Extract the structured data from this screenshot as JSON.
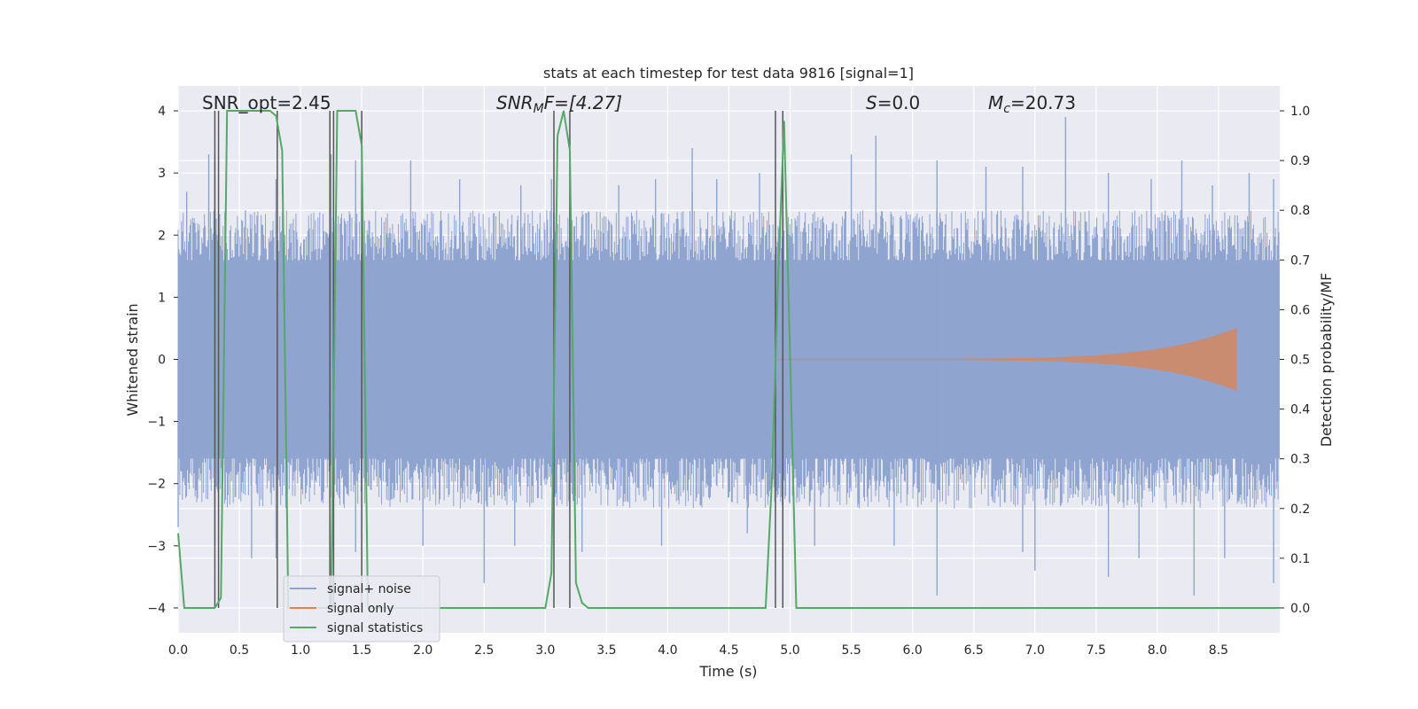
{
  "chart_data": {
    "type": "line",
    "title": "stats at each timestep for test data 9816 [signal=1]",
    "xlabel": "Time (s)",
    "ylabel": "Whitened strain",
    "ylabel_right": "Detection probability/MF",
    "xlim": [
      0.0,
      9.0
    ],
    "ylim": [
      -4.4,
      4.4
    ],
    "ylim_right": [
      -0.05,
      1.05
    ],
    "xticks": [
      "0.0",
      "0.5",
      "1.0",
      "1.5",
      "2.0",
      "2.5",
      "3.0",
      "3.5",
      "4.0",
      "4.5",
      "5.0",
      "5.5",
      "6.0",
      "6.5",
      "7.0",
      "7.5",
      "8.0",
      "8.5"
    ],
    "xtick_values": [
      0.0,
      0.5,
      1.0,
      1.5,
      2.0,
      2.5,
      3.0,
      3.5,
      4.0,
      4.5,
      5.0,
      5.5,
      6.0,
      6.5,
      7.0,
      7.5,
      8.0,
      8.5
    ],
    "yticks": [
      "4",
      "3",
      "2",
      "1",
      "0",
      "−1",
      "−2",
      "−3",
      "−4"
    ],
    "ytick_values": [
      4,
      3,
      2,
      1,
      0,
      -1,
      -2,
      -3,
      -4
    ],
    "yticks_right": [
      "1.0",
      "0.9",
      "0.8",
      "0.7",
      "0.6",
      "0.5",
      "0.4",
      "0.3",
      "0.2",
      "0.1",
      "0.0"
    ],
    "ytick_values_right": [
      1.0,
      0.9,
      0.8,
      0.7,
      0.6,
      0.5,
      0.4,
      0.3,
      0.2,
      0.1,
      0.0
    ],
    "grid": true,
    "legend_position": "lower-left",
    "annotations": {
      "snr_opt": "SNR_opt=2.45",
      "snr_mf_sym": "SNR",
      "snr_mf_sub": "M",
      "snr_mf_rest": "F=[4.27]",
      "s_sym": "S",
      "s_rest": "=0.0",
      "mc_sym": "M",
      "mc_sub": "c",
      "mc_rest": "=20.73"
    },
    "series": [
      {
        "name": "signal+ noise",
        "color": "#8fa4cf",
        "axis": "left",
        "envelope_upper": 1.6,
        "envelope_lower": -1.6,
        "spike_peaks": [
          [
            0.07,
            2.7
          ],
          [
            0.25,
            3.3
          ],
          [
            0.3,
            3.3
          ],
          [
            0.55,
            2.4
          ],
          [
            0.8,
            2.9
          ],
          [
            1.25,
            3.3
          ],
          [
            1.45,
            3.2
          ],
          [
            1.9,
            3.2
          ],
          [
            2.3,
            2.9
          ],
          [
            2.8,
            2.8
          ],
          [
            3.05,
            2.9
          ],
          [
            3.6,
            2.8
          ],
          [
            3.9,
            2.9
          ],
          [
            4.2,
            2.7
          ],
          [
            4.2,
            3.4
          ],
          [
            4.4,
            2.9
          ],
          [
            4.75,
            3.0
          ],
          [
            5.5,
            3.3
          ],
          [
            5.7,
            3.6
          ],
          [
            6.2,
            3.2
          ],
          [
            6.6,
            3.1
          ],
          [
            6.9,
            3.1
          ],
          [
            7.25,
            3.9
          ],
          [
            7.6,
            3.0
          ],
          [
            7.95,
            2.9
          ],
          [
            8.2,
            3.2
          ],
          [
            8.45,
            2.8
          ],
          [
            8.75,
            3.0
          ],
          [
            8.95,
            2.9
          ]
        ],
        "spike_troughs": [
          [
            0.0,
            -2.7
          ],
          [
            0.3,
            -3.0
          ],
          [
            0.6,
            -3.2
          ],
          [
            0.8,
            -3.2
          ],
          [
            1.45,
            -3.1
          ],
          [
            2.0,
            -3.0
          ],
          [
            2.5,
            -3.6
          ],
          [
            2.75,
            -3.0
          ],
          [
            3.3,
            -3.1
          ],
          [
            3.95,
            -3.0
          ],
          [
            4.65,
            -2.8
          ],
          [
            5.2,
            -3.0
          ],
          [
            5.85,
            -3.0
          ],
          [
            6.2,
            -3.8
          ],
          [
            6.9,
            -3.1
          ],
          [
            7.0,
            -3.4
          ],
          [
            7.6,
            -3.5
          ],
          [
            7.85,
            -3.2
          ],
          [
            8.3,
            -3.8
          ],
          [
            8.55,
            -3.2
          ],
          [
            8.95,
            -3.6
          ]
        ]
      },
      {
        "name": "signal only",
        "color": "#dd8452",
        "axis": "left",
        "chirp_start": 4.9,
        "chirp_end": 8.65,
        "chirp_peak_amplitude": 0.5
      },
      {
        "name": "signal statistics",
        "color": "#55a868",
        "axis": "right",
        "x": [
          0.0,
          0.05,
          0.1,
          0.15,
          0.2,
          0.25,
          0.3,
          0.35,
          0.4,
          0.45,
          0.5,
          0.55,
          0.6,
          0.65,
          0.7,
          0.75,
          0.8,
          0.85,
          0.9,
          0.95,
          1.0,
          1.05,
          1.1,
          1.15,
          1.2,
          1.25,
          1.3,
          1.35,
          1.4,
          1.45,
          1.5,
          1.55,
          1.6,
          1.7,
          1.8,
          1.9,
          2.0,
          2.1,
          2.2,
          2.3,
          2.4,
          2.5,
          2.6,
          2.7,
          2.8,
          2.9,
          3.0,
          3.05,
          3.1,
          3.15,
          3.2,
          3.25,
          3.3,
          3.35,
          3.4,
          3.5,
          3.6,
          3.7,
          3.8,
          3.9,
          4.0,
          4.1,
          4.2,
          4.3,
          4.4,
          4.5,
          4.6,
          4.7,
          4.8,
          4.85,
          4.9,
          4.95,
          5.0,
          5.05,
          5.1,
          5.2,
          5.5,
          6.0,
          6.5,
          7.0,
          7.5,
          8.0,
          8.5,
          9.0
        ],
        "values": [
          0.15,
          0.0,
          0.0,
          0.0,
          0.0,
          0.0,
          0.0,
          0.02,
          1.0,
          1.0,
          1.0,
          1.0,
          1.0,
          1.0,
          1.0,
          1.0,
          0.99,
          0.92,
          0.0,
          0.0,
          0.0,
          0.0,
          0.0,
          0.0,
          0.0,
          0.0,
          1.0,
          1.0,
          1.0,
          1.0,
          0.93,
          0.0,
          0.0,
          0.0,
          0.0,
          0.0,
          0.0,
          0.0,
          0.0,
          0.0,
          0.0,
          0.0,
          0.0,
          0.0,
          0.0,
          0.0,
          0.0,
          0.07,
          0.95,
          1.0,
          0.92,
          0.05,
          0.01,
          0.0,
          0.0,
          0.0,
          0.0,
          0.0,
          0.0,
          0.0,
          0.0,
          0.0,
          0.0,
          0.0,
          0.0,
          0.0,
          0.0,
          0.0,
          0.0,
          0.25,
          0.65,
          0.98,
          0.5,
          0.0,
          0.0,
          0.0,
          0.0,
          0.0,
          0.0,
          0.0,
          0.0,
          0.0,
          0.0,
          0.0
        ]
      }
    ],
    "vlines": [
      0.3,
      0.33,
      0.81,
      1.24,
      1.27,
      1.5,
      3.07,
      3.2,
      4.88,
      4.94
    ],
    "vline_color": "#555555"
  }
}
